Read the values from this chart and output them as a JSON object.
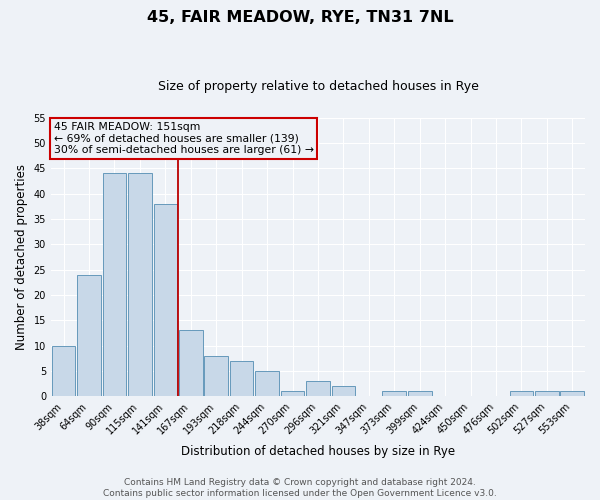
{
  "title": "45, FAIR MEADOW, RYE, TN31 7NL",
  "subtitle": "Size of property relative to detached houses in Rye",
  "xlabel": "Distribution of detached houses by size in Rye",
  "ylabel": "Number of detached properties",
  "bar_labels": [
    "38sqm",
    "64sqm",
    "90sqm",
    "115sqm",
    "141sqm",
    "167sqm",
    "193sqm",
    "218sqm",
    "244sqm",
    "270sqm",
    "296sqm",
    "321sqm",
    "347sqm",
    "373sqm",
    "399sqm",
    "424sqm",
    "450sqm",
    "476sqm",
    "502sqm",
    "527sqm",
    "553sqm"
  ],
  "bar_values": [
    10,
    24,
    44,
    44,
    38,
    13,
    8,
    7,
    5,
    1,
    3,
    2,
    0,
    1,
    1,
    0,
    0,
    0,
    1,
    1,
    1
  ],
  "bar_color": "#c8d8e8",
  "bar_edgecolor": "#6699bb",
  "bar_linewidth": 0.7,
  "vline_x": 4.5,
  "vline_color": "#bb0000",
  "vline_linewidth": 1.3,
  "ylim": [
    0,
    55
  ],
  "yticks": [
    0,
    5,
    10,
    15,
    20,
    25,
    30,
    35,
    40,
    45,
    50,
    55
  ],
  "annotation_title": "45 FAIR MEADOW: 151sqm",
  "annotation_line1": "← 69% of detached houses are smaller (139)",
  "annotation_line2": "30% of semi-detached houses are larger (61) →",
  "annotation_box_edgecolor": "#cc0000",
  "footer_line1": "Contains HM Land Registry data © Crown copyright and database right 2024.",
  "footer_line2": "Contains public sector information licensed under the Open Government Licence v3.0.",
  "background_color": "#eef2f7",
  "grid_color": "#ffffff",
  "title_fontsize": 11.5,
  "subtitle_fontsize": 9,
  "ylabel_fontsize": 8.5,
  "xlabel_fontsize": 8.5,
  "tick_fontsize": 7,
  "footer_fontsize": 6.5,
  "ann_fontsize": 7.8
}
